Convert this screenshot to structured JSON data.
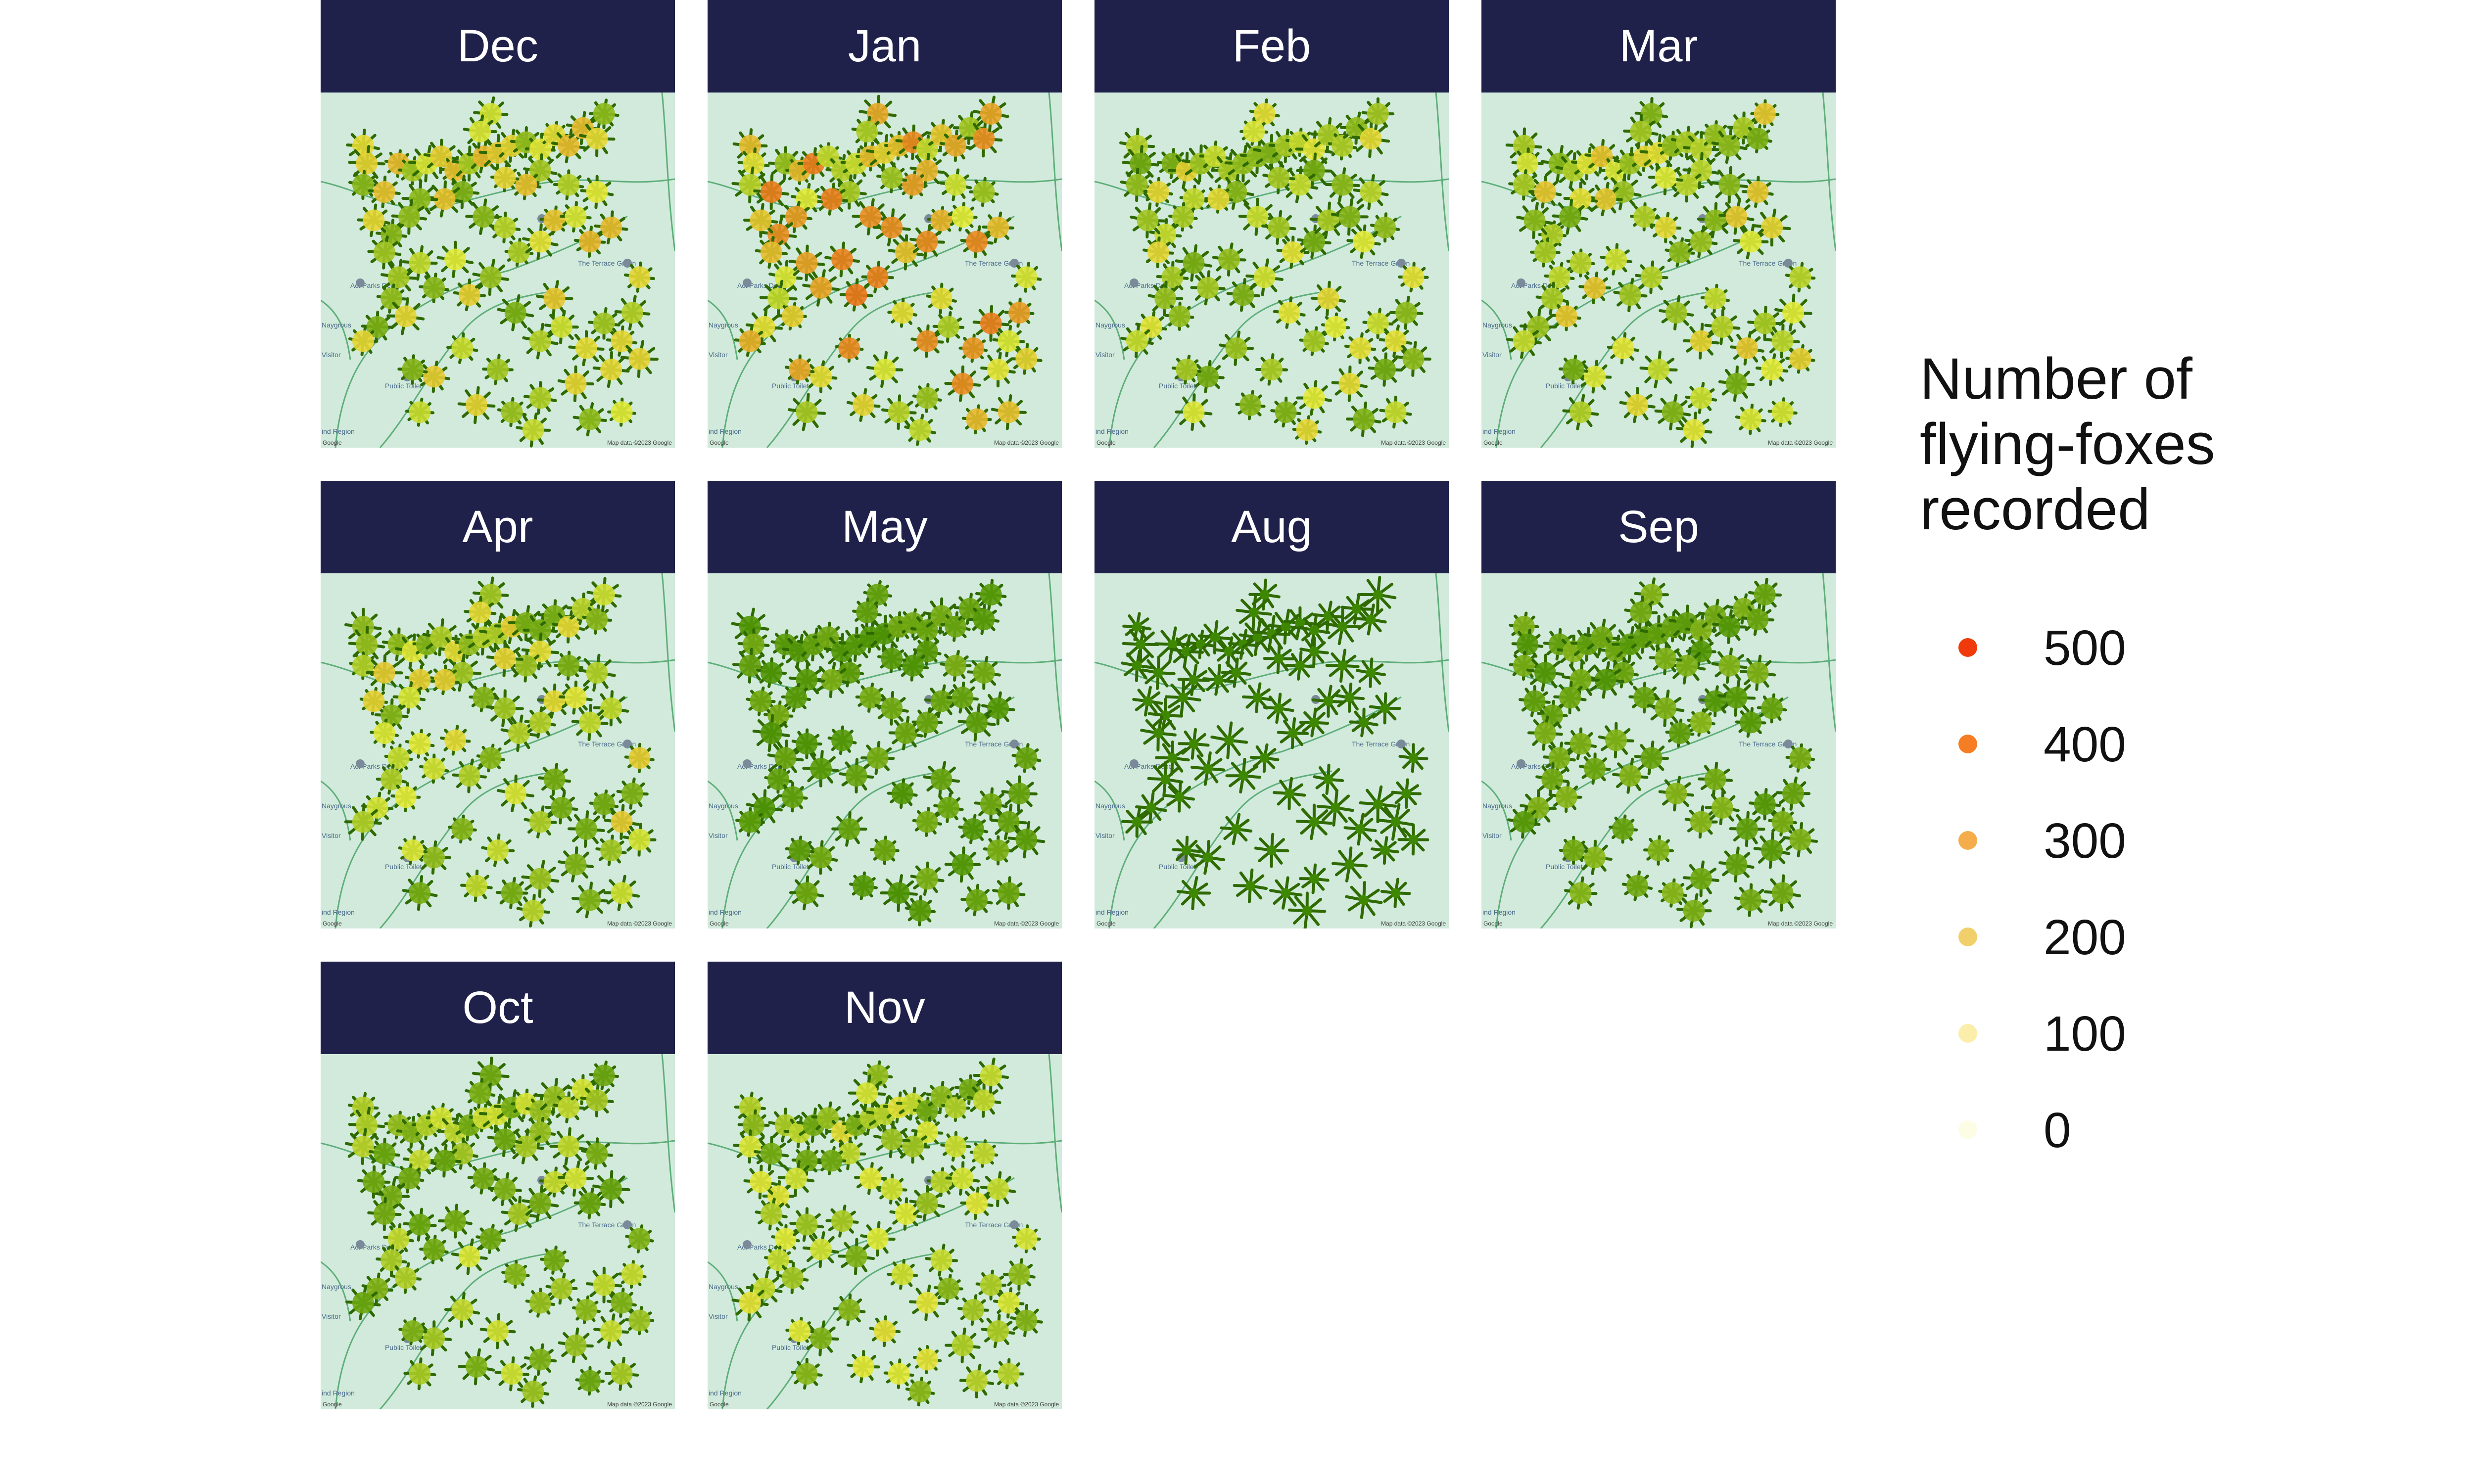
{
  "chart_data": {
    "type": "scatter",
    "description_kind": "faceted map of flying-fox counts at roost trees",
    "facets": [
      "Dec",
      "Jan",
      "Feb",
      "Mar",
      "Apr",
      "May",
      "Aug",
      "Sep",
      "Oct",
      "Nov"
    ],
    "facet_intensity": {
      "Dec": 0.45,
      "Jan": 0.62,
      "Feb": 0.38,
      "Mar": 0.42,
      "Apr": 0.4,
      "May": 0.12,
      "Aug": 0.0,
      "Sep": 0.15,
      "Oct": 0.3,
      "Nov": 0.35
    },
    "legend": {
      "title": "Number of\nflying-foxes\nrecorded",
      "entries": [
        {
          "label": "500",
          "value": 500,
          "color": "#f03a0c"
        },
        {
          "label": "400",
          "value": 400,
          "color": "#f57e24"
        },
        {
          "label": "300",
          "value": 300,
          "color": "#f4ad4a"
        },
        {
          "label": "200",
          "value": 200,
          "color": "#f1d06b"
        },
        {
          "label": "100",
          "value": 100,
          "color": "#fbeeaa"
        },
        {
          "label": "0",
          "value": 0,
          "color": "#fdfde6"
        }
      ],
      "placement": "right"
    },
    "map": {
      "labels": [
        "Act Parks Depot",
        "The Terrace Green",
        "Public Toilet",
        "Naygrous",
        "Visitor",
        "ind Region"
      ],
      "attribution_left": "Google",
      "attribution_right": "Map data ©2023 Google"
    },
    "colors": {
      "strip": "#20214a",
      "map_background": "#d1eadb",
      "map_lines": "#5fae7a",
      "point_outline": "#2f6a00",
      "point_low": "#3f8c00",
      "point_mid": "#e4ec3a",
      "point_high": "#f03a0c"
    }
  }
}
